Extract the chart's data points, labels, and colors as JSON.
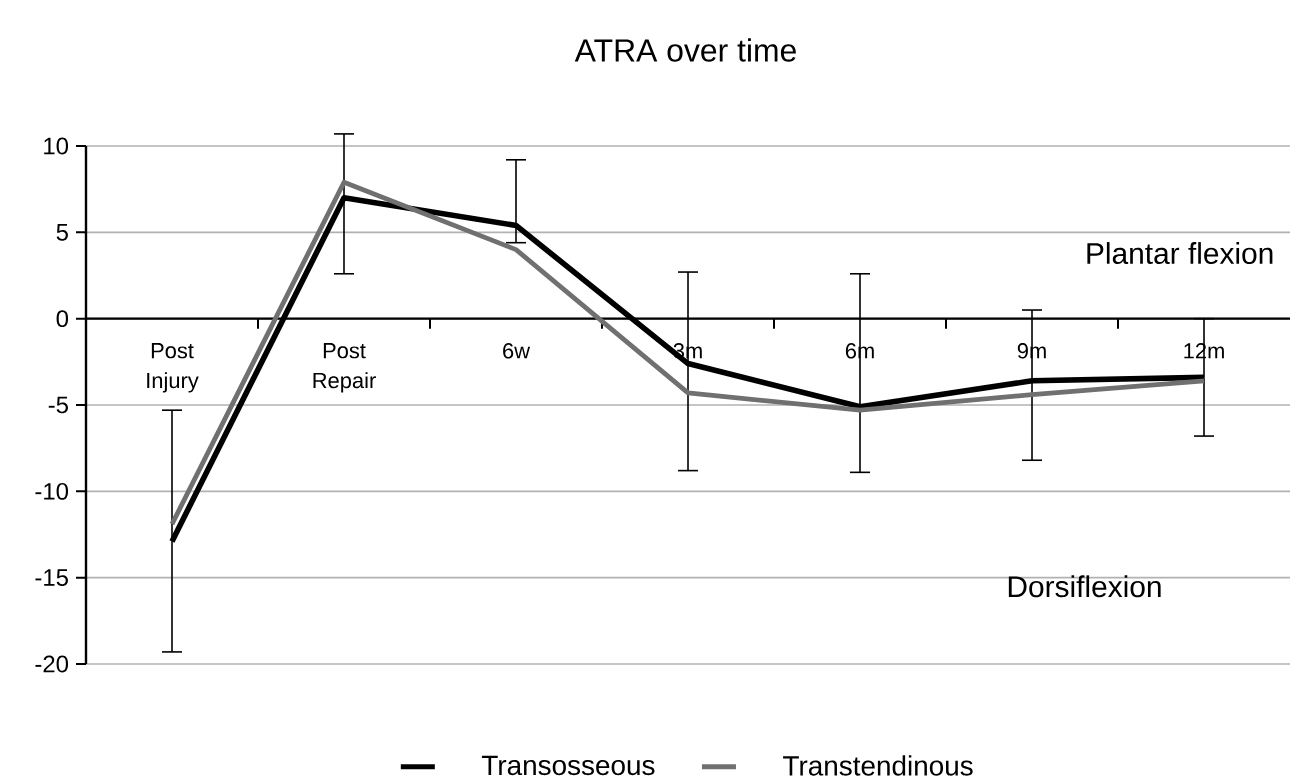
{
  "chart_data": {
    "type": "line",
    "title": "ATRA over time",
    "categories": [
      "Post Injury",
      "Post Repair",
      "6w",
      "3m",
      "6m",
      "9m",
      "12m"
    ],
    "series": [
      {
        "name": "Transosseous",
        "color": "#000000",
        "values": [
          -12.9,
          7.0,
          5.4,
          -2.6,
          -5.1,
          -3.6,
          -3.4
        ],
        "errors": [
          [
            -19.3,
            -5.3
          ],
          [
            2.6,
            10.7
          ],
          [
            4.4,
            9.2
          ],
          [
            -8.8,
            2.7
          ],
          [
            -8.9,
            2.6
          ],
          [
            -8.2,
            0.5
          ],
          [
            -6.8,
            0.0
          ]
        ]
      },
      {
        "name": "Transtendinous",
        "color": "#707070",
        "values": [
          -11.9,
          7.9,
          4.0,
          -4.3,
          -5.3,
          -4.4,
          -3.6
        ]
      }
    ],
    "ylim": [
      -20,
      10
    ],
    "yticks": [
      -20,
      -15,
      -10,
      -5,
      0,
      5,
      10
    ],
    "grid": "y",
    "legend": "bottom",
    "marker": "none",
    "line_style": "solid",
    "annotations": [
      "Plantar flexion",
      "Dorsiflexion"
    ]
  }
}
